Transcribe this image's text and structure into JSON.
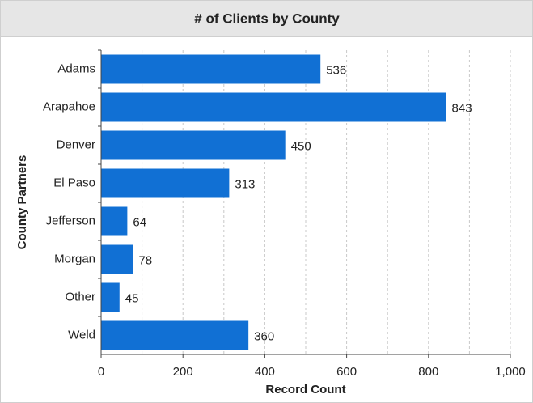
{
  "chart_data": {
    "type": "bar",
    "orientation": "horizontal",
    "title": "# of Clients by County",
    "categories": [
      "Adams",
      "Arapahoe",
      "Denver",
      "El Paso",
      "Jefferson",
      "Morgan",
      "Other",
      "Weld"
    ],
    "values": [
      536,
      843,
      450,
      313,
      64,
      78,
      45,
      360
    ],
    "color": "#1170d4",
    "xlabel": "Record Count",
    "ylabel": "County Partners",
    "xlim": [
      0,
      1000
    ],
    "xticks": [
      0,
      200,
      400,
      600,
      800,
      {
        "value": 1000,
        "label": "1,000"
      }
    ],
    "xgrid": [
      100,
      200,
      300,
      400,
      500,
      600,
      700,
      800,
      900,
      1000
    ],
    "grid": true
  }
}
